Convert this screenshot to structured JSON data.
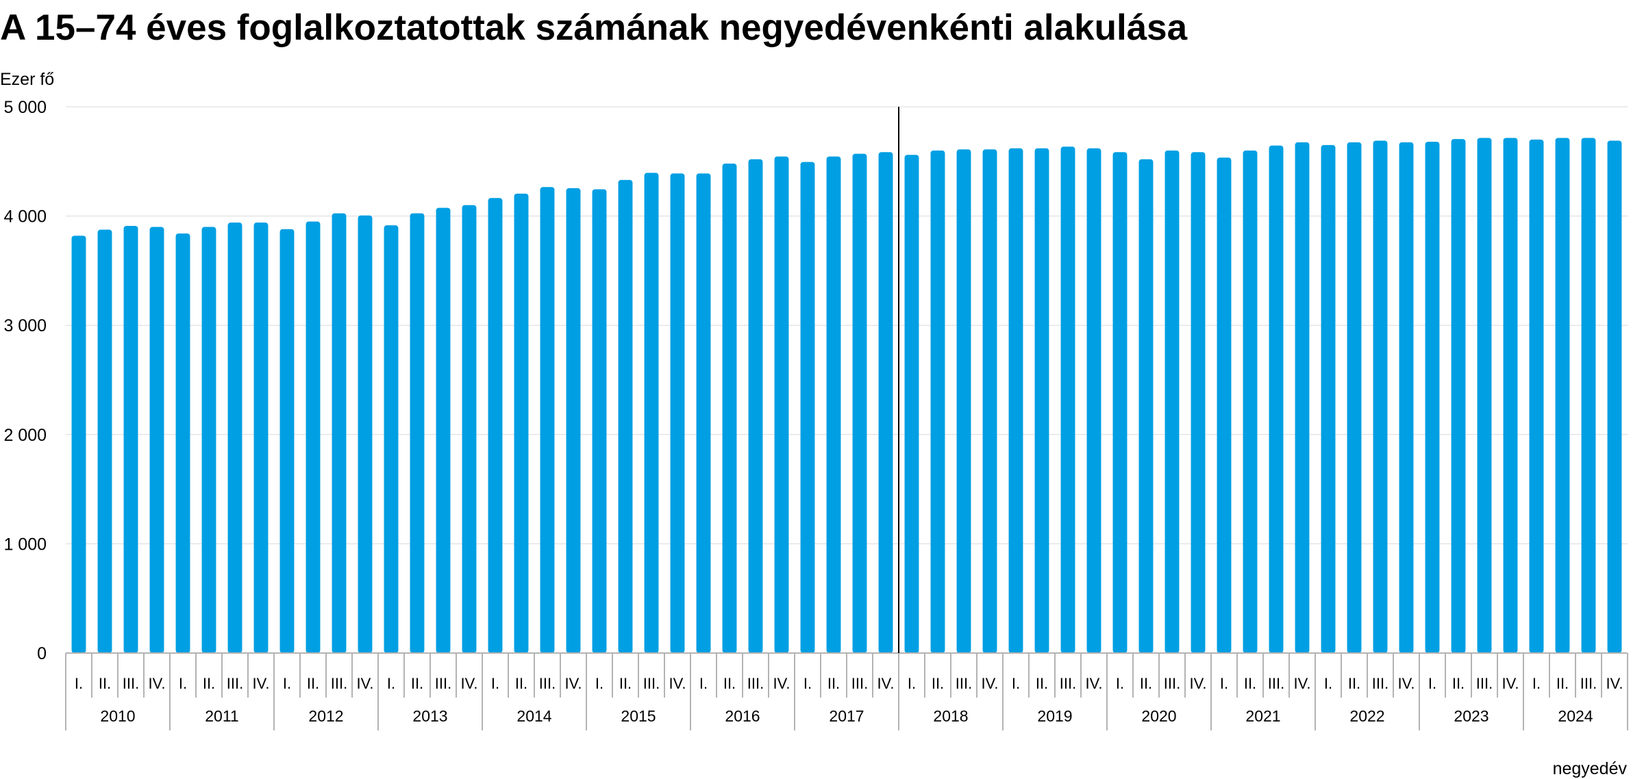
{
  "title": "A 15–74 éves foglalkoztatottak számának negyedévenkénti alakulása",
  "chart_data": {
    "type": "bar",
    "title": "A 15–74 éves foglalkoztatottak számának negyedévenkénti alakulása",
    "ylabel": "Ezer fő",
    "xlabel": "negyedév",
    "ylim": [
      0,
      5000
    ],
    "yticks": [
      0,
      1000,
      2000,
      3000,
      4000,
      5000
    ],
    "ytick_labels": [
      "0",
      "1 000",
      "2 000",
      "3 000",
      "4 000",
      "5 000"
    ],
    "grid": true,
    "bar_color": "#009fe3",
    "quarter_labels": [
      "I.",
      "II.",
      "III.",
      "IV."
    ],
    "years": [
      "2010",
      "2011",
      "2012",
      "2013",
      "2014",
      "2015",
      "2016",
      "2017",
      "2018",
      "2019",
      "2020",
      "2021",
      "2022",
      "2023",
      "2024"
    ],
    "vertical_marker_after": "2017 IV.",
    "values": [
      3820,
      3875,
      3910,
      3900,
      3840,
      3900,
      3940,
      3940,
      3880,
      3950,
      4025,
      4005,
      3915,
      4025,
      4075,
      4100,
      4165,
      4205,
      4265,
      4255,
      4245,
      4330,
      4395,
      4390,
      4390,
      4480,
      4520,
      4545,
      4495,
      4545,
      4570,
      4585,
      4560,
      4600,
      4610,
      4610,
      4620,
      4620,
      4635,
      4620,
      4585,
      4520,
      4600,
      4585,
      4535,
      4600,
      4645,
      4675,
      4650,
      4675,
      4690,
      4675,
      4680,
      4705,
      4715,
      4715,
      4700,
      4715,
      4715,
      4690
    ]
  }
}
